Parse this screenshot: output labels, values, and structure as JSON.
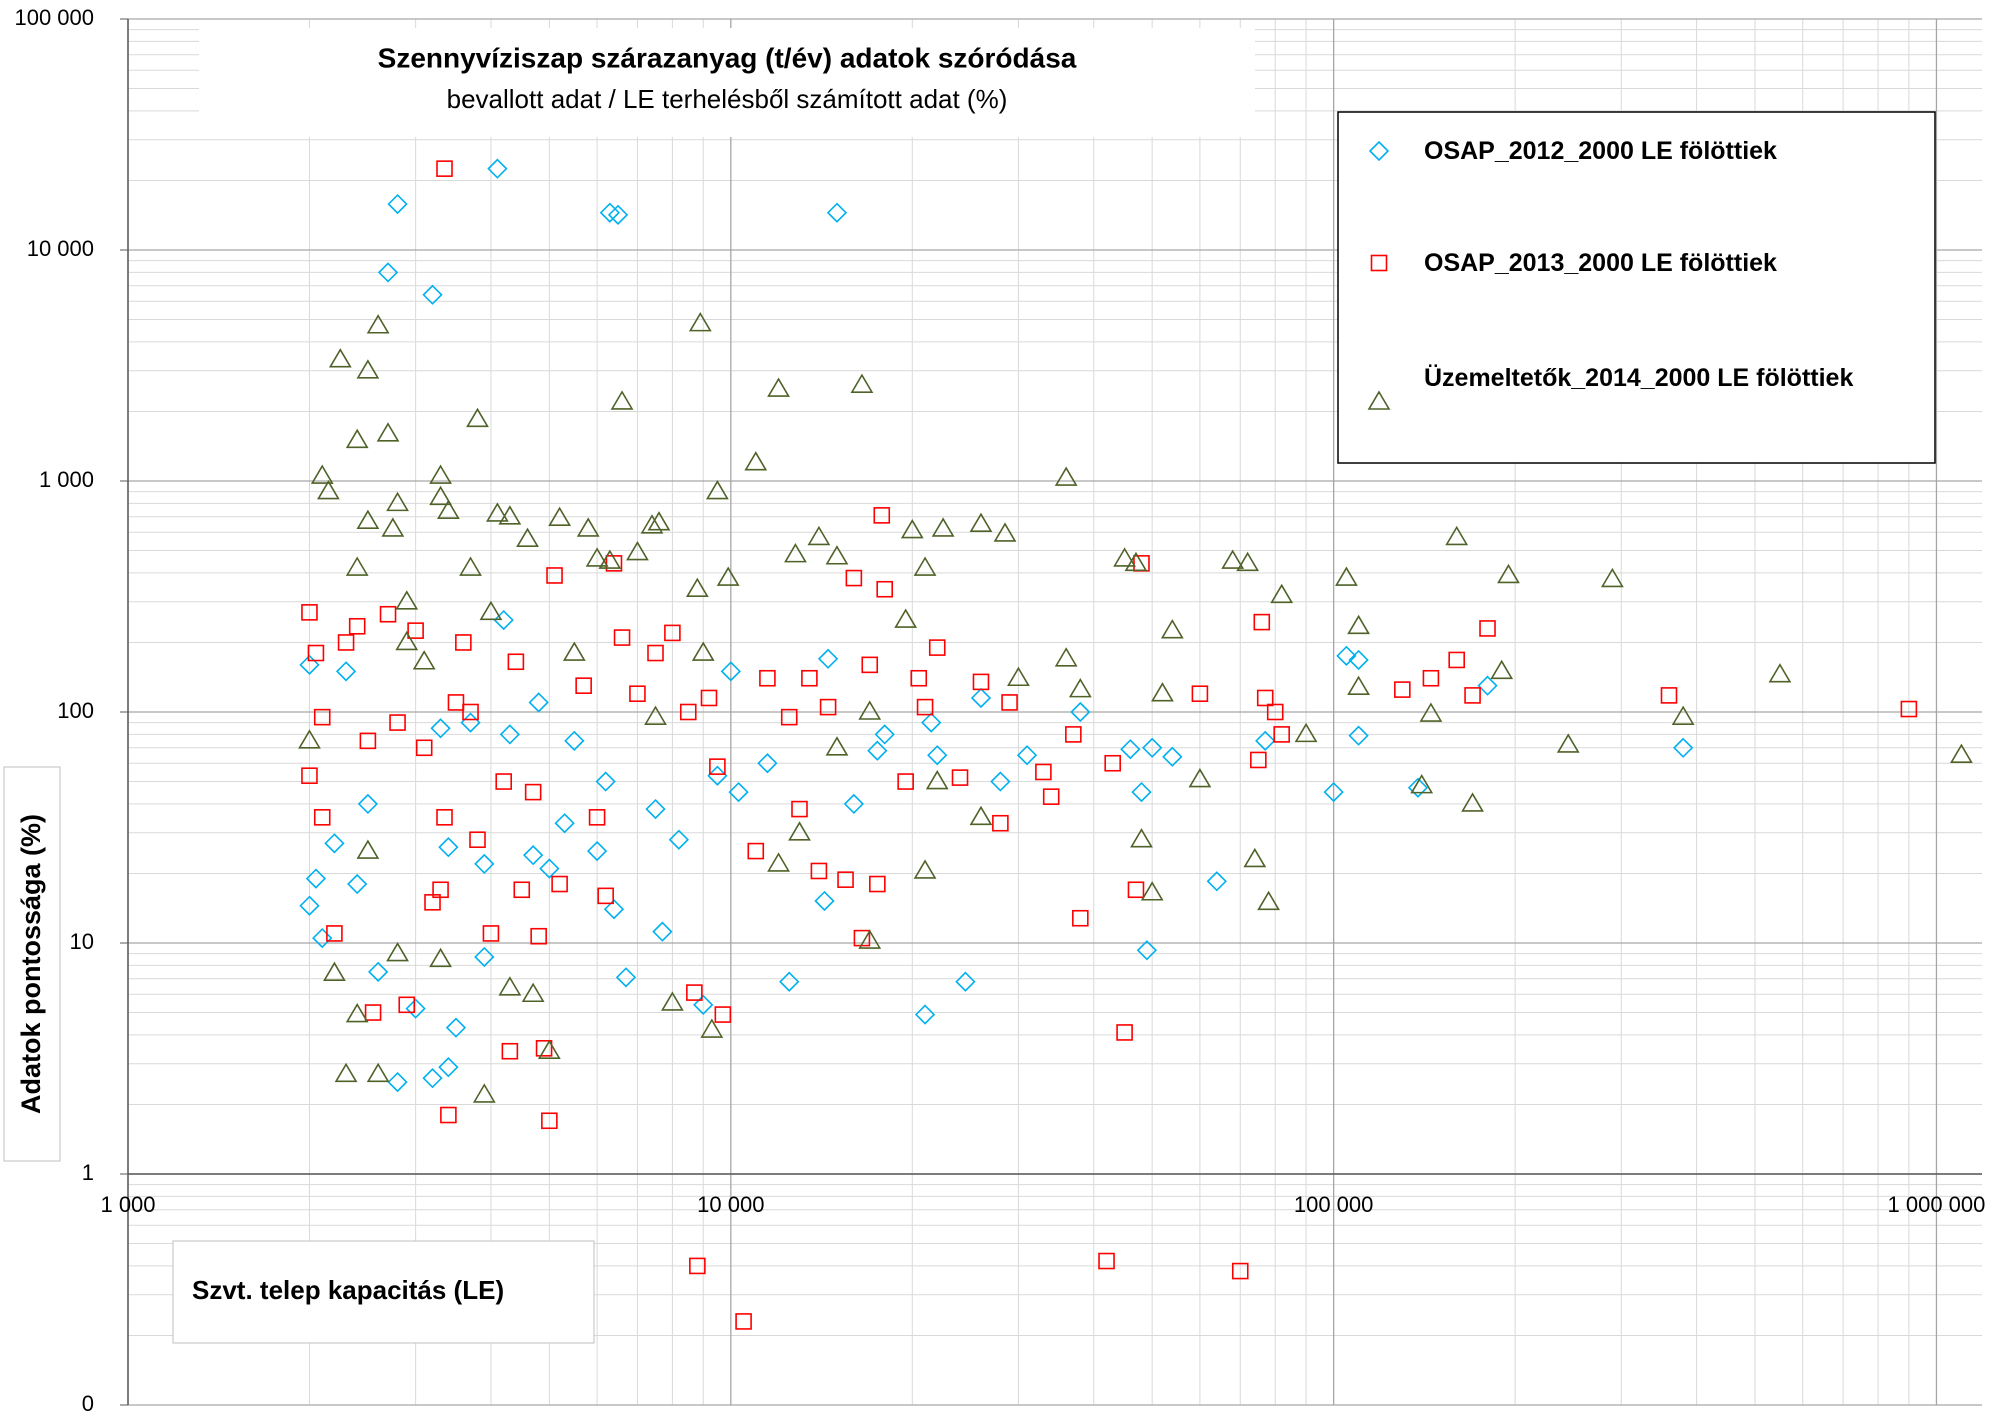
{
  "chart_data": {
    "type": "scatter",
    "title": "Szennyvíziszap szárazanyag (t/év) adatok szóródása",
    "subtitle": "bevallott adat / LE terhelésből számított adat (%)",
    "x_label": "Szvt. telep kapacitás (LE)",
    "y_label": "Adatok pontossága (%)",
    "xscale": "log",
    "yscale": "log",
    "grid": true,
    "legend": "upper right",
    "xlim": [
      1000,
      1190000
    ],
    "ylim": [
      0.1,
      100000
    ],
    "xticks": [
      {
        "value": 1000,
        "label": "1 000"
      },
      {
        "value": 10000,
        "label": "10 000"
      },
      {
        "value": 100000,
        "label": "100 000"
      },
      {
        "value": 1000000,
        "label": "1 000 000"
      }
    ],
    "yticks": [
      {
        "value": 0.1,
        "label": "0"
      },
      1,
      10,
      100,
      {
        "value": 1000,
        "label": "1 000"
      },
      {
        "value": 10000,
        "label": "10 000"
      },
      {
        "value": 100000,
        "label": "100 000"
      }
    ],
    "series": [
      {
        "name": "OSAP_2012_2000 LE fölöttiek",
        "color": "#00b0f0",
        "marker": "diamond",
        "x": [
          4100,
          2800,
          6300,
          6500,
          15000,
          2700,
          3200,
          2000,
          2050,
          2000,
          2100,
          2200,
          2300,
          2400,
          2600,
          2800,
          3000,
          3200,
          3400,
          3500,
          3400,
          3700,
          3900,
          3900,
          4300,
          4200,
          4700,
          5000,
          4800,
          5300,
          6000,
          6200,
          6400,
          6700,
          7500,
          7700,
          8200,
          9000,
          9500,
          10000,
          10300,
          11500,
          12500,
          14300,
          14500,
          16000,
          17500,
          21000,
          21500,
          22000,
          24500,
          26000,
          28000,
          31000,
          38000,
          46000,
          48000,
          49000,
          50000,
          54000,
          64000,
          77000,
          100000,
          105000,
          110000,
          110000,
          138000,
          180000,
          380000,
          18000,
          3300,
          2500,
          5500
        ],
        "values": [
          22500,
          15800,
          14500,
          14200,
          14500,
          8000,
          6400,
          160,
          19,
          14.5,
          10.5,
          27,
          150,
          18,
          7.5,
          2.5,
          5.2,
          2.6,
          2.9,
          4.3,
          26,
          90,
          8.7,
          22,
          80,
          250,
          24,
          21,
          110,
          33,
          25,
          50,
          14,
          7.1,
          38,
          11.2,
          28,
          5.4,
          53,
          150,
          45,
          60,
          6.8,
          15.2,
          170,
          40,
          68,
          4.9,
          90,
          65,
          6.8,
          115,
          50,
          65,
          100,
          69,
          45,
          9.3,
          70,
          64,
          18.5,
          75,
          45,
          175,
          79,
          168,
          47,
          130,
          70,
          80,
          85,
          40,
          75
        ]
      },
      {
        "name": "OSAP_2013_2000 LE fölöttiek",
        "color": "#ff0000",
        "marker": "square",
        "x": [
          3350,
          2000,
          2050,
          2100,
          2000,
          2100,
          2200,
          2300,
          2400,
          2500,
          2550,
          2700,
          2800,
          2900,
          3000,
          3100,
          3200,
          3300,
          3350,
          3400,
          3500,
          3600,
          3700,
          3800,
          4000,
          4200,
          4300,
          4400,
          4500,
          4700,
          4800,
          4900,
          5000,
          5100,
          5200,
          5700,
          6000,
          6200,
          6400,
          6600,
          7000,
          7500,
          8000,
          8500,
          8700,
          8800,
          9200,
          9500,
          9700,
          10500,
          11000,
          11500,
          12500,
          13000,
          13500,
          14000,
          14500,
          15500,
          16000,
          16500,
          17000,
          17500,
          17800,
          18000,
          19500,
          20500,
          21000,
          22000,
          24000,
          26000,
          28000,
          29000,
          33000,
          34000,
          37000,
          38000,
          42000,
          43000,
          45000,
          47000,
          48000,
          60000,
          70000,
          75000,
          76000,
          77000,
          80000,
          82000,
          130000,
          145000,
          160000,
          170000,
          180000,
          360000,
          900000
        ],
        "values": [
          22500,
          270,
          180,
          35,
          53,
          95,
          11,
          200,
          235,
          75,
          5,
          265,
          90,
          5.4,
          225,
          70,
          15,
          17,
          35,
          1.8,
          110,
          200,
          100,
          28,
          11,
          50,
          3.4,
          165,
          17,
          45,
          10.7,
          3.5,
          1.7,
          390,
          18,
          130,
          35,
          16,
          440,
          210,
          120,
          180,
          220,
          100,
          6.1,
          0.4,
          115,
          58,
          4.9,
          0.23,
          25,
          140,
          95,
          38,
          140,
          20.5,
          105,
          18.8,
          380,
          10.5,
          160,
          18,
          710,
          340,
          50,
          140,
          105,
          190,
          52,
          135,
          33,
          110,
          55,
          43,
          80,
          12.8,
          0.42,
          60,
          4.1,
          17,
          440,
          120,
          0.38,
          62,
          245,
          115,
          100,
          80,
          125,
          140,
          168,
          118,
          230,
          118,
          103
        ]
      },
      {
        "name": "Üzemeltetők_2014_2000 LE fölöttiek",
        "color": "#4f6228",
        "marker": "triangle",
        "x": [
          2100,
          2150,
          2250,
          2400,
          2500,
          2600,
          2700,
          2750,
          2800,
          2400,
          2500,
          2900,
          3300,
          3400,
          3300,
          3700,
          3800,
          4100,
          4300,
          4600,
          5200,
          5800,
          6000,
          6300,
          6600,
          7000,
          7400,
          7600,
          8800,
          8900,
          9500,
          9900,
          11000,
          12000,
          12800,
          14000,
          15000,
          16500,
          17000,
          19500,
          20000,
          21000,
          22500,
          26000,
          28500,
          36000,
          45000,
          47000,
          68000,
          72000,
          82000,
          105000,
          110000,
          160000,
          195000,
          290000,
          550000,
          1100000,
          245000,
          190000,
          380000,
          170000,
          140000,
          90000,
          78000,
          74000,
          60000,
          50000,
          48000,
          2200,
          2300,
          2400,
          2600,
          2800,
          3300,
          3900,
          4300,
          4700,
          5000,
          8000,
          9300,
          17000,
          21000,
          2000,
          2500,
          2900,
          3100,
          4000,
          5500,
          7500,
          9000,
          12000,
          13000,
          15000,
          22000,
          26000,
          30000,
          36000,
          38000,
          54000,
          52000,
          110000,
          145000
        ],
        "values": [
          1050,
          900,
          3350,
          1500,
          3000,
          4700,
          1600,
          620,
          800,
          420,
          670,
          300,
          1050,
          740,
          850,
          420,
          1850,
          720,
          700,
          560,
          690,
          620,
          460,
          450,
          2200,
          490,
          640,
          660,
          340,
          4800,
          900,
          380,
          1200,
          2500,
          480,
          570,
          470,
          2600,
          100,
          250,
          610,
          420,
          620,
          650,
          590,
          1030,
          460,
          440,
          450,
          440,
          320,
          380,
          235,
          570,
          390,
          375,
          145,
          65,
          72,
          150,
          95,
          40,
          48,
          80,
          15,
          23,
          51,
          16.5,
          28,
          7.4,
          2.7,
          4.9,
          2.7,
          9,
          8.5,
          2.2,
          6.4,
          6,
          3.4,
          5.5,
          4.2,
          10.2,
          20.5,
          75,
          25,
          200,
          165,
          270,
          180,
          95,
          180,
          22,
          30,
          70,
          50,
          35,
          140,
          170,
          125,
          225,
          120,
          128,
          98
        ]
      }
    ]
  }
}
